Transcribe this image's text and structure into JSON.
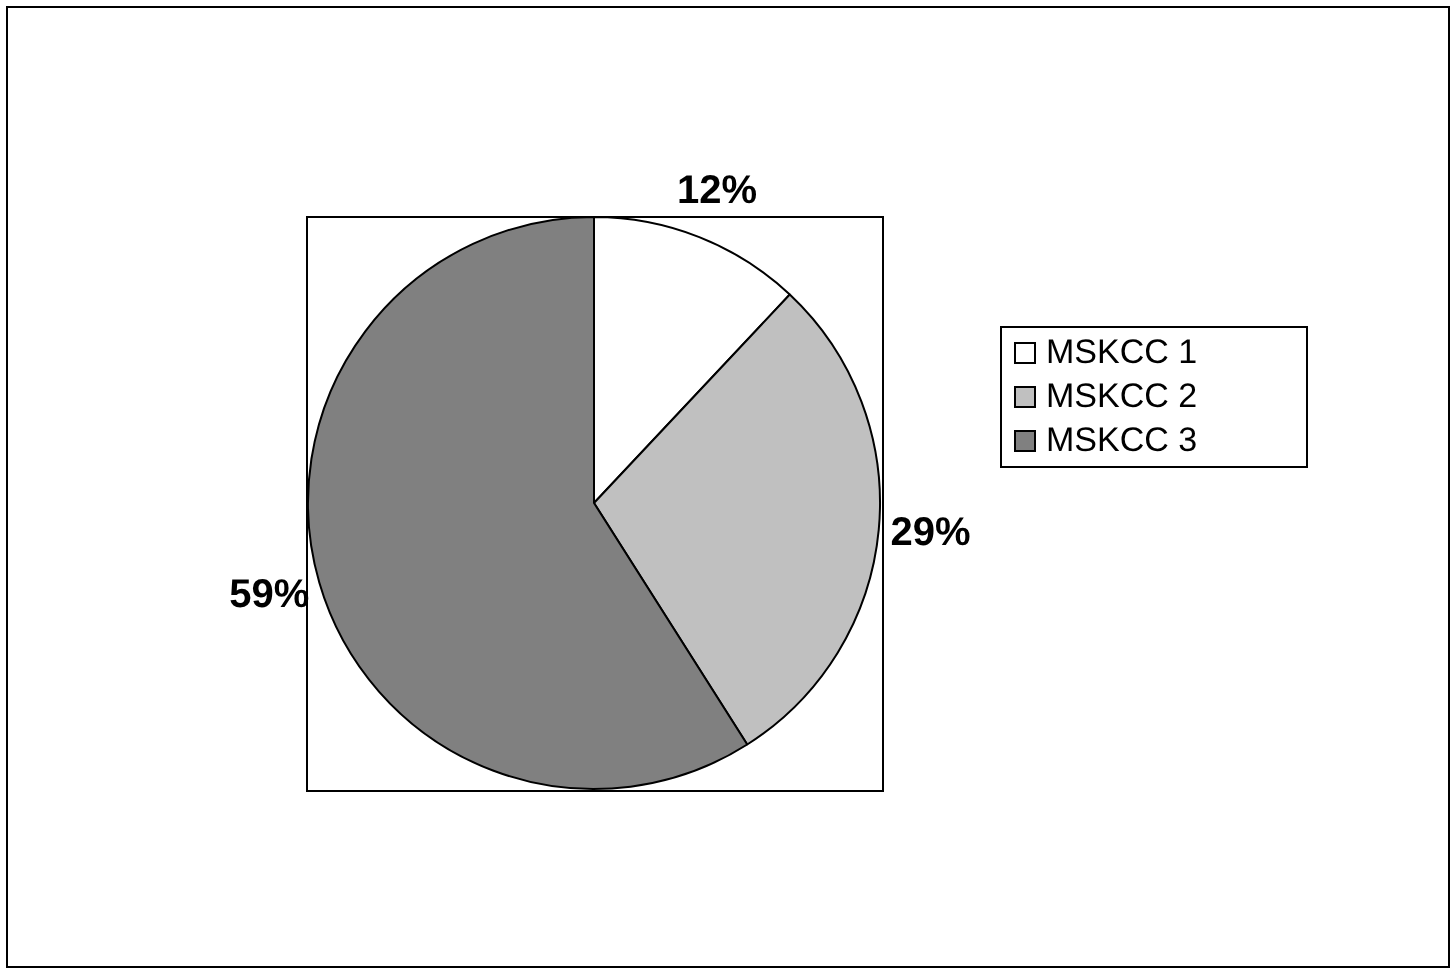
{
  "chart_data": {
    "type": "pie",
    "categories": [
      "MSKCC 1",
      "MSKCC 2",
      "MSKCC 3"
    ],
    "values": [
      12,
      29,
      59
    ],
    "colors": [
      "#ffffff",
      "#c0c0c0",
      "#808080"
    ],
    "value_labels": [
      "12%",
      "29%",
      "59%"
    ],
    "legend": "right"
  }
}
